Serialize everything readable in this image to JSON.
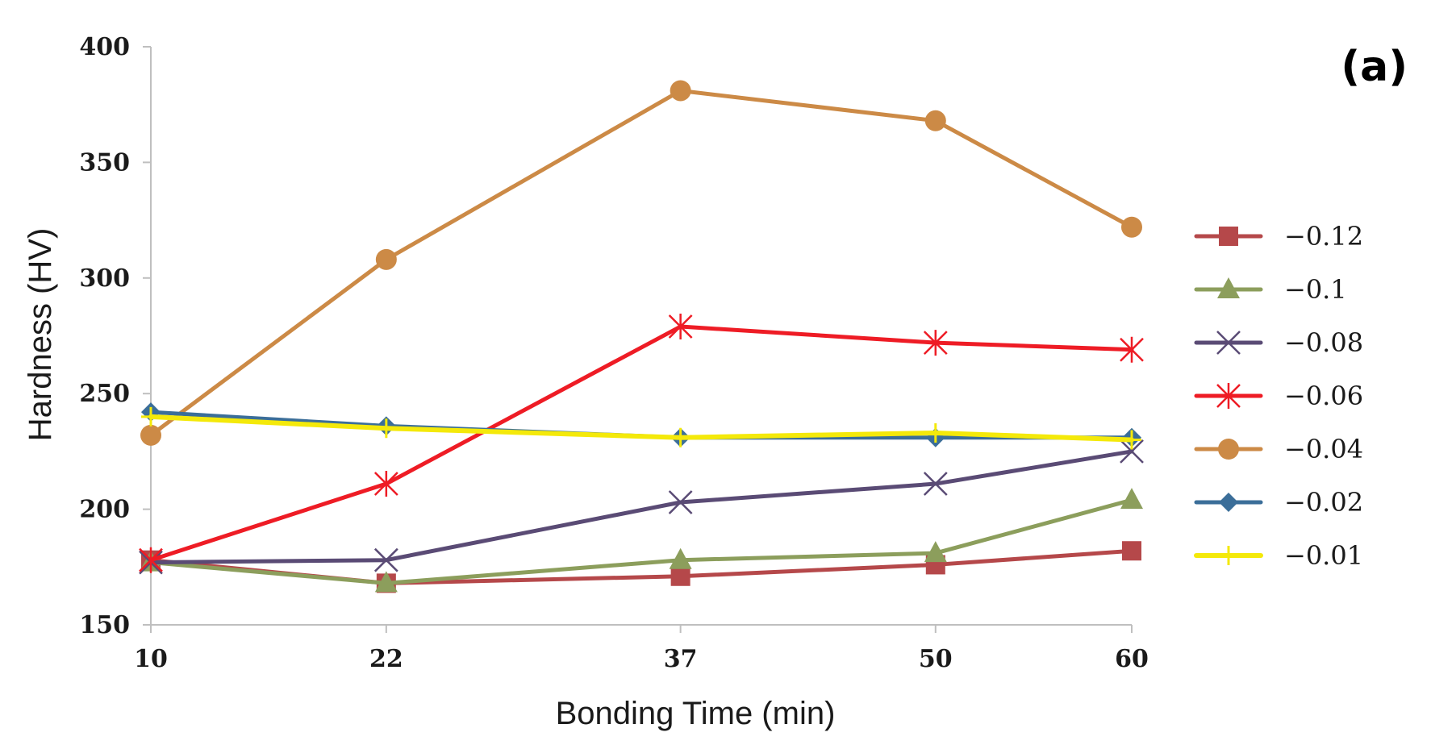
{
  "chart_data": {
    "type": "line",
    "panel_label": "(a)",
    "xlabel": "Bonding Time (min)",
    "ylabel": "Hardness (HV)",
    "categories": [
      "10",
      "22",
      "37",
      "50",
      "60"
    ],
    "ylim": [
      150,
      400
    ],
    "yticks": [
      "150",
      "200",
      "250",
      "300",
      "350",
      "400"
    ],
    "grid": false,
    "legend_position": "right",
    "series": [
      {
        "name": "−0.12",
        "color": "#b5484a",
        "marker": "square",
        "values": [
          178,
          168,
          171,
          176,
          182
        ]
      },
      {
        "name": "−0.1",
        "color": "#8c9e5c",
        "marker": "triangle",
        "values": [
          177,
          168,
          178,
          181,
          204
        ]
      },
      {
        "name": "−0.08",
        "color": "#5a4b75",
        "marker": "x",
        "values": [
          177,
          178,
          203,
          211,
          225
        ]
      },
      {
        "name": "−0.06",
        "color": "#ee1c25",
        "marker": "star",
        "values": [
          178,
          211,
          279,
          272,
          269
        ]
      },
      {
        "name": "−0.04",
        "color": "#cc8a46",
        "marker": "circle",
        "values": [
          232,
          308,
          381,
          368,
          322
        ]
      },
      {
        "name": "−0.02",
        "color": "#3b6e99",
        "marker": "diamond",
        "values": [
          242,
          236,
          231,
          231,
          231
        ]
      },
      {
        "name": "−0.01",
        "color": "#f4e90a",
        "marker": "plus",
        "values": [
          240,
          235,
          231,
          233,
          230
        ]
      }
    ]
  }
}
